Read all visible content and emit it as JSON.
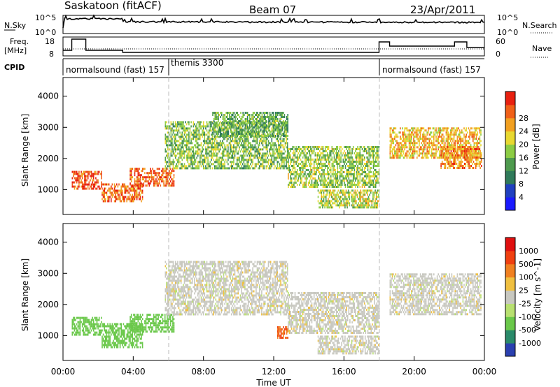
{
  "header": {
    "station": "Saskatoon (fitACF)",
    "beam": "Beam 07",
    "date": "23/Apr/2011"
  },
  "top_panels": {
    "nsky_label": "N.Sky",
    "nsky_ticks": [
      "10^5",
      "10^0"
    ],
    "nsearch_label": "N.Search",
    "nsearch_ticks": [
      "10^5",
      "10^0"
    ],
    "freq_label_1": "Freq.",
    "freq_label_2": "[MHz]",
    "freq_ticks": [
      "18",
      "8"
    ],
    "nave_label": "Nave",
    "nave_ticks": [
      "60",
      "0"
    ],
    "cpid_label": "CPID",
    "cpid_segments": [
      {
        "label": "normalsound (fast) 157",
        "start_h": 0
      },
      {
        "label": "themis 3300",
        "start_h": 6
      },
      {
        "label": "normalsound (fast) 157",
        "start_h": 18
      }
    ]
  },
  "chart_data": [
    {
      "type": "heatmap",
      "panel": "power",
      "ylabel": "Slant Range [km]",
      "yticks": [
        1000,
        2000,
        3000,
        4000
      ],
      "ylim": [
        200,
        4600
      ],
      "xlim_hours": [
        0,
        24
      ],
      "colorbar_label": "Power [dB]",
      "colorbar_ticks": [
        "4",
        "8",
        "12",
        "16",
        "20",
        "24",
        "28"
      ],
      "colorbar_colors": [
        "#1a1aff",
        "#2040c0",
        "#2f7a5a",
        "#4e9a4e",
        "#8ccc44",
        "#e8d830",
        "#f2a020",
        "#f06018",
        "#e82010"
      ],
      "regions": [
        {
          "t0": 0.5,
          "t1": 2.2,
          "r0": 1000,
          "r1": 1600,
          "level": 26
        },
        {
          "t0": 2.2,
          "t1": 4.5,
          "r0": 600,
          "r1": 1200,
          "level": 24
        },
        {
          "t0": 3.8,
          "t1": 6.3,
          "r0": 1100,
          "r1": 1700,
          "level": 25
        },
        {
          "t0": 5.8,
          "t1": 12.8,
          "r0": 1700,
          "r1": 3200,
          "level": 14
        },
        {
          "t0": 8.5,
          "t1": 12.8,
          "r0": 2700,
          "r1": 3500,
          "level": 12
        },
        {
          "t0": 12.8,
          "t1": 18.0,
          "r0": 1100,
          "r1": 2400,
          "level": 15
        },
        {
          "t0": 14.5,
          "t1": 18.0,
          "r0": 400,
          "r1": 1000,
          "level": 16
        },
        {
          "t0": 18.6,
          "t1": 23.8,
          "r0": 2000,
          "r1": 3000,
          "level": 20
        },
        {
          "t0": 21.5,
          "t1": 23.8,
          "r0": 1700,
          "r1": 2400,
          "level": 22
        }
      ]
    },
    {
      "type": "heatmap",
      "panel": "velocity",
      "ylabel": "Slant Range [km]",
      "yticks": [
        1000,
        2000,
        3000,
        4000
      ],
      "ylim": [
        200,
        4600
      ],
      "xlim_hours": [
        0,
        24
      ],
      "xticks": [
        "00:00",
        "04:00",
        "08:00",
        "12:00",
        "16:00",
        "20:00",
        "00:00"
      ],
      "xlabel": "Time UT",
      "colorbar_label": "Velocity [m s^-1]",
      "colorbar_ticks": [
        "1000",
        "500",
        "100",
        "25",
        "-25",
        "-100",
        "-500",
        "-1000"
      ],
      "colorbar_colors": [
        "#2a40b0",
        "#2a8a6a",
        "#6ac84a",
        "#b8e070",
        "#c8c8c0",
        "#f0c040",
        "#f08020",
        "#f04010",
        "#e01010"
      ],
      "regions": [
        {
          "t0": 0.5,
          "t1": 2.2,
          "r0": 1000,
          "r1": 1600,
          "level": 200
        },
        {
          "t0": 2.2,
          "t1": 4.5,
          "r0": 600,
          "r1": 1400,
          "level": 200
        },
        {
          "t0": 3.8,
          "t1": 6.3,
          "r0": 1100,
          "r1": 1700,
          "level": 150
        },
        {
          "t0": 5.8,
          "t1": 12.8,
          "r0": 1700,
          "r1": 3400,
          "level": 0
        },
        {
          "t0": 12.8,
          "t1": 18.0,
          "r0": 1100,
          "r1": 2400,
          "level": 0
        },
        {
          "t0": 14.5,
          "t1": 18.0,
          "r0": 400,
          "r1": 1000,
          "level": 0
        },
        {
          "t0": 18.6,
          "t1": 23.8,
          "r0": 1700,
          "r1": 3000,
          "level": 0
        },
        {
          "t0": 12.2,
          "t1": 12.8,
          "r0": 900,
          "r1": 1300,
          "level": -300
        }
      ]
    }
  ]
}
